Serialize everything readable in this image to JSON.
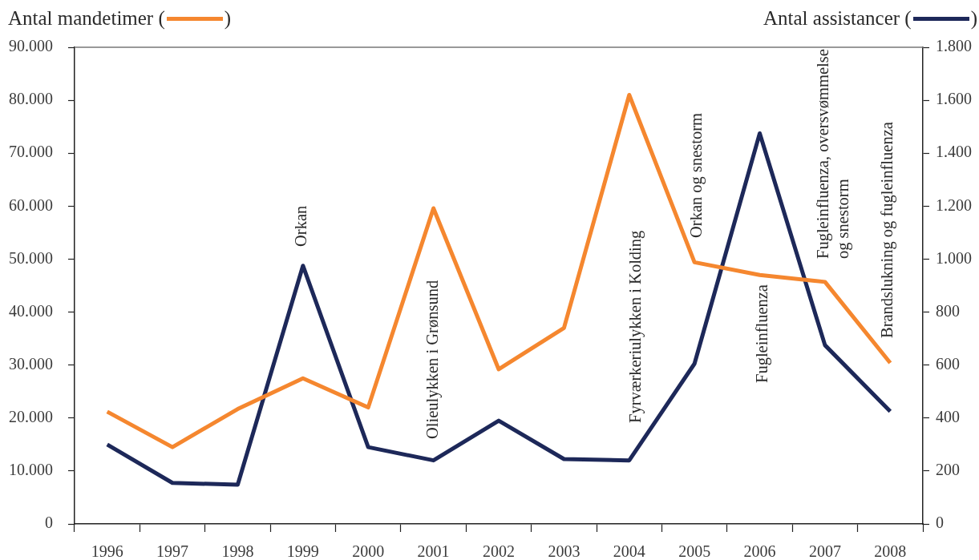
{
  "chart_data": {
    "type": "line",
    "ylabel": "Antal mandetimer ( )",
    "y2label": "Antal assistancer ( )",
    "categories": [
      "1996",
      "1997",
      "1998",
      "1999",
      "2000",
      "2001",
      "2002",
      "2003",
      "2004",
      "2005",
      "2006",
      "2007",
      "2008"
    ],
    "series": [
      {
        "color": "#f5872f",
        "values": [
          21200,
          14500,
          21700,
          27500,
          22000,
          59600,
          29200,
          37000,
          81000,
          49400,
          47000,
          45700,
          30400
        ]
      },
      {
        "color": "#1d2859",
        "axis": "y2",
        "values": [
          300,
          155,
          148,
          975,
          290,
          240,
          390,
          245,
          240,
          605,
          1475,
          675,
          425
        ]
      }
    ],
    "ylim": [
      0,
      90000
    ],
    "yticks": [
      0,
      {
        "value": 10000,
        "label": "10.000"
      },
      {
        "value": 20000,
        "label": "20.000"
      },
      {
        "value": 30000,
        "label": "30.000"
      },
      {
        "value": 40000,
        "label": "40.000"
      },
      {
        "value": 50000,
        "label": "50.000"
      },
      {
        "value": 60000,
        "label": "60.000"
      },
      {
        "value": 70000,
        "label": "70.000"
      },
      {
        "value": 80000,
        "label": "80.000"
      },
      {
        "value": 90000,
        "label": "90.000"
      }
    ],
    "y2lim": [
      0,
      1800
    ],
    "y2ticks": [
      0,
      200,
      400,
      600,
      800,
      {
        "value": 1000,
        "label": "1.000"
      },
      {
        "value": 1200,
        "label": "1.200"
      },
      {
        "value": 1400,
        "label": "1.400"
      },
      {
        "value": 1600,
        "label": "1.600"
      },
      {
        "value": 1800,
        "label": "1.800"
      }
    ],
    "annotations": [
      "Orkan",
      "Olieulykken i Grønsund",
      "Fyrværkeriulykken i Kolding",
      "Orkan og snestorm",
      "Fugleinfluenza",
      "Fugleinfluenza, oversvømmelse\nog snestorm",
      "Brandslukning og fugleinfluenza"
    ]
  }
}
